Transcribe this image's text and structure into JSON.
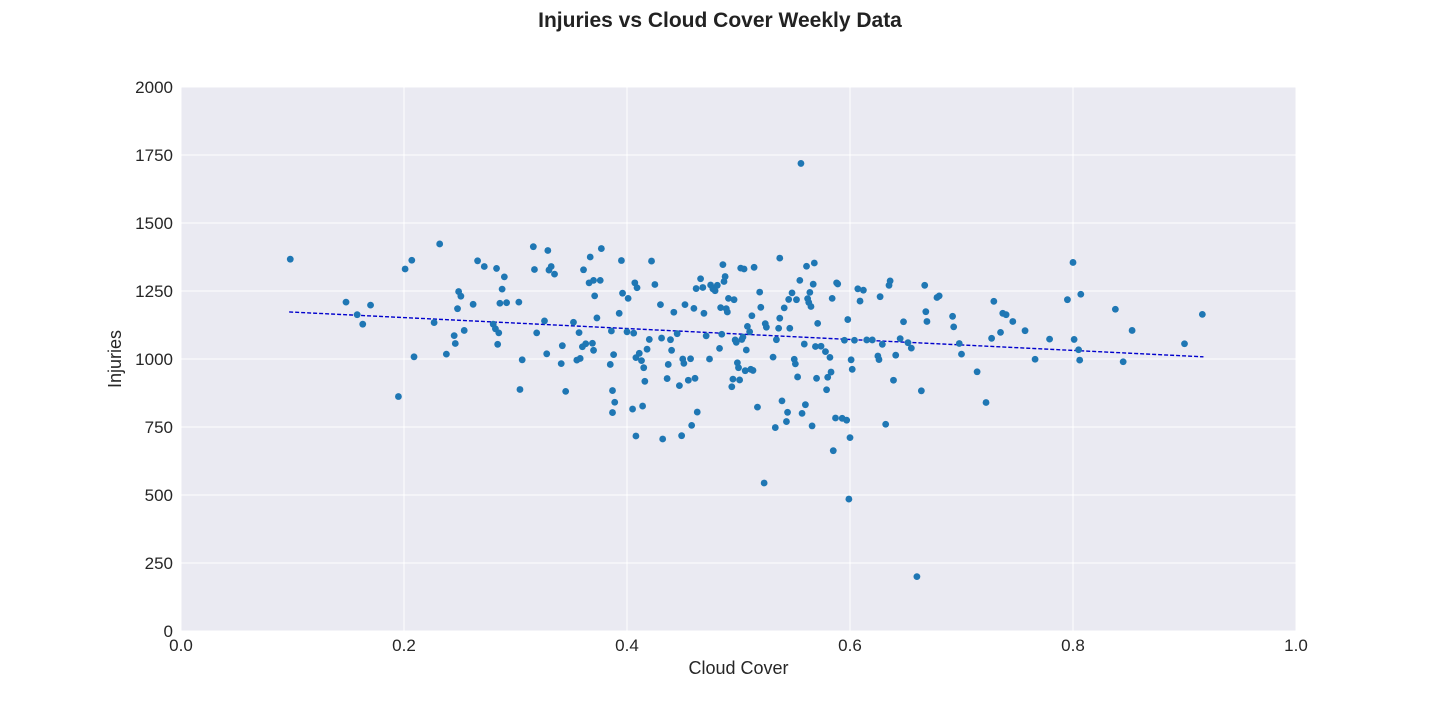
{
  "chart_data": {
    "type": "scatter",
    "title": "Injuries vs Cloud Cover Weekly Data",
    "xlabel": "Cloud Cover",
    "ylabel": "Injuries",
    "xlim": [
      0.0,
      1.0
    ],
    "ylim": [
      0,
      2000
    ],
    "xticks": [
      0.0,
      0.2,
      0.4,
      0.6,
      0.8,
      1.0
    ],
    "xtick_labels": [
      "0.0",
      "0.2",
      "0.4",
      "0.6",
      "0.8",
      "1.0"
    ],
    "yticks": [
      0,
      250,
      500,
      750,
      1000,
      1250,
      1500,
      1750,
      2000
    ],
    "ytick_labels": [
      "0",
      "250",
      "500",
      "750",
      "1000",
      "1250",
      "1500",
      "1750",
      "2000"
    ],
    "grid": true,
    "background_color": "#eaeaf2",
    "point_color": "#1f77b4",
    "trend_color": "#0000cc",
    "trendline": {
      "style": "dashed",
      "x": [
        0.097,
        0.917
      ],
      "y": [
        1173,
        1008
      ]
    },
    "points": [
      [
        0.098,
        1367
      ],
      [
        0.148,
        1209
      ],
      [
        0.158,
        1163
      ],
      [
        0.163,
        1128
      ],
      [
        0.17,
        1198
      ],
      [
        0.195,
        862
      ],
      [
        0.201,
        1331
      ],
      [
        0.207,
        1363
      ],
      [
        0.209,
        1008
      ],
      [
        0.227,
        1134
      ],
      [
        0.232,
        1423
      ],
      [
        0.238,
        1018
      ],
      [
        0.245,
        1086
      ],
      [
        0.246,
        1057
      ],
      [
        0.248,
        1185
      ],
      [
        0.249,
        1248
      ],
      [
        0.251,
        1231
      ],
      [
        0.254,
        1105
      ],
      [
        0.262,
        1201
      ],
      [
        0.266,
        1361
      ],
      [
        0.272,
        1340
      ],
      [
        0.28,
        1128
      ],
      [
        0.282,
        1111
      ],
      [
        0.283,
        1333
      ],
      [
        0.284,
        1054
      ],
      [
        0.285,
        1096
      ],
      [
        0.286,
        1205
      ],
      [
        0.288,
        1257
      ],
      [
        0.29,
        1302
      ],
      [
        0.292,
        1207
      ],
      [
        0.303,
        1209
      ],
      [
        0.304,
        888
      ],
      [
        0.306,
        997
      ],
      [
        0.316,
        1413
      ],
      [
        0.317,
        1329
      ],
      [
        0.319,
        1096
      ],
      [
        0.326,
        1140
      ],
      [
        0.328,
        1019
      ],
      [
        0.329,
        1399
      ],
      [
        0.33,
        1327
      ],
      [
        0.332,
        1340
      ],
      [
        0.335,
        1312
      ],
      [
        0.341,
        983
      ],
      [
        0.342,
        1049
      ],
      [
        0.345,
        881
      ],
      [
        0.352,
        1135
      ],
      [
        0.355,
        996
      ],
      [
        0.357,
        1097
      ],
      [
        0.358,
        1002
      ],
      [
        0.36,
        1045
      ],
      [
        0.361,
        1328
      ],
      [
        0.363,
        1056
      ],
      [
        0.366,
        1280
      ],
      [
        0.367,
        1375
      ],
      [
        0.369,
        1058
      ],
      [
        0.37,
        1032
      ],
      [
        0.37,
        1289
      ],
      [
        0.371,
        1232
      ],
      [
        0.373,
        1151
      ],
      [
        0.376,
        1289
      ],
      [
        0.377,
        1406
      ],
      [
        0.385,
        980
      ],
      [
        0.386,
        1103
      ],
      [
        0.387,
        884
      ],
      [
        0.387,
        803
      ],
      [
        0.388,
        1016
      ],
      [
        0.389,
        841
      ],
      [
        0.393,
        1168
      ],
      [
        0.395,
        1362
      ],
      [
        0.396,
        1242
      ],
      [
        0.4,
        1100
      ],
      [
        0.401,
        1223
      ],
      [
        0.405,
        816
      ],
      [
        0.406,
        1095
      ],
      [
        0.407,
        1280
      ],
      [
        0.408,
        717
      ],
      [
        0.408,
        1005
      ],
      [
        0.409,
        1262
      ],
      [
        0.411,
        1021
      ],
      [
        0.413,
        994
      ],
      [
        0.414,
        827
      ],
      [
        0.415,
        968
      ],
      [
        0.416,
        918
      ],
      [
        0.418,
        1036
      ],
      [
        0.42,
        1072
      ],
      [
        0.422,
        1360
      ],
      [
        0.425,
        1274
      ],
      [
        0.43,
        1200
      ],
      [
        0.431,
        1077
      ],
      [
        0.432,
        706
      ],
      [
        0.436,
        928
      ],
      [
        0.437,
        980
      ],
      [
        0.439,
        1071
      ],
      [
        0.44,
        1032
      ],
      [
        0.442,
        1172
      ],
      [
        0.445,
        1093
      ],
      [
        0.447,
        902
      ],
      [
        0.449,
        718
      ],
      [
        0.45,
        1000
      ],
      [
        0.451,
        984
      ],
      [
        0.452,
        1200
      ],
      [
        0.455,
        922
      ],
      [
        0.457,
        1001
      ],
      [
        0.458,
        756
      ],
      [
        0.46,
        1186
      ],
      [
        0.461,
        929
      ],
      [
        0.462,
        1259
      ],
      [
        0.463,
        805
      ],
      [
        0.466,
        1295
      ],
      [
        0.468,
        1263
      ],
      [
        0.469,
        1168
      ],
      [
        0.471,
        1085
      ],
      [
        0.474,
        1000
      ],
      [
        0.475,
        1272
      ],
      [
        0.477,
        1258
      ],
      [
        0.479,
        1251
      ],
      [
        0.481,
        1271
      ],
      [
        0.483,
        1039
      ],
      [
        0.484,
        1189
      ],
      [
        0.485,
        1091
      ],
      [
        0.486,
        1347
      ],
      [
        0.487,
        1285
      ],
      [
        0.488,
        1303
      ],
      [
        0.489,
        1185
      ],
      [
        0.49,
        1173
      ],
      [
        0.491,
        1223
      ],
      [
        0.494,
        898
      ],
      [
        0.495,
        926
      ],
      [
        0.496,
        1218
      ],
      [
        0.497,
        1070
      ],
      [
        0.498,
        1061
      ],
      [
        0.499,
        986
      ],
      [
        0.5,
        968
      ],
      [
        0.501,
        923
      ],
      [
        0.502,
        1334
      ],
      [
        0.503,
        1072
      ],
      [
        0.504,
        1081
      ],
      [
        0.505,
        1331
      ],
      [
        0.506,
        957
      ],
      [
        0.507,
        1033
      ],
      [
        0.508,
        1120
      ],
      [
        0.51,
        1100
      ],
      [
        0.511,
        962
      ],
      [
        0.512,
        1159
      ],
      [
        0.513,
        958
      ],
      [
        0.514,
        1337
      ],
      [
        0.517,
        823
      ],
      [
        0.519,
        1246
      ],
      [
        0.52,
        1190
      ],
      [
        0.523,
        544
      ],
      [
        0.524,
        1130
      ],
      [
        0.525,
        1117
      ],
      [
        0.531,
        1007
      ],
      [
        0.533,
        748
      ],
      [
        0.534,
        1071
      ],
      [
        0.536,
        1113
      ],
      [
        0.537,
        1150
      ],
      [
        0.537,
        1371
      ],
      [
        0.539,
        846
      ],
      [
        0.541,
        1188
      ],
      [
        0.543,
        770
      ],
      [
        0.544,
        804
      ],
      [
        0.545,
        1219
      ],
      [
        0.546,
        1113
      ],
      [
        0.548,
        1243
      ],
      [
        0.55,
        999
      ],
      [
        0.551,
        982
      ],
      [
        0.552,
        1218
      ],
      [
        0.553,
        934
      ],
      [
        0.555,
        1289
      ],
      [
        0.556,
        1719
      ],
      [
        0.557,
        800
      ],
      [
        0.559,
        1055
      ],
      [
        0.56,
        832
      ],
      [
        0.561,
        1341
      ],
      [
        0.562,
        1222
      ],
      [
        0.563,
        1208
      ],
      [
        0.564,
        1245
      ],
      [
        0.565,
        1193
      ],
      [
        0.566,
        754
      ],
      [
        0.567,
        1275
      ],
      [
        0.568,
        1353
      ],
      [
        0.569,
        1046
      ],
      [
        0.57,
        929
      ],
      [
        0.571,
        1131
      ],
      [
        0.574,
        1047
      ],
      [
        0.578,
        1027
      ],
      [
        0.579,
        887
      ],
      [
        0.58,
        933
      ],
      [
        0.582,
        1006
      ],
      [
        0.583,
        952
      ],
      [
        0.584,
        1223
      ],
      [
        0.585,
        663
      ],
      [
        0.587,
        783
      ],
      [
        0.588,
        1280
      ],
      [
        0.589,
        1276
      ],
      [
        0.593,
        782
      ],
      [
        0.595,
        1069
      ],
      [
        0.597,
        775
      ],
      [
        0.598,
        1145
      ],
      [
        0.599,
        485
      ],
      [
        0.6,
        711
      ],
      [
        0.601,
        997
      ],
      [
        0.602,
        962
      ],
      [
        0.604,
        1069
      ],
      [
        0.607,
        1258
      ],
      [
        0.609,
        1213
      ],
      [
        0.612,
        1253
      ],
      [
        0.615,
        1070
      ],
      [
        0.62,
        1070
      ],
      [
        0.625,
        1011
      ],
      [
        0.626,
        998
      ],
      [
        0.627,
        1229
      ],
      [
        0.629,
        1054
      ],
      [
        0.632,
        760
      ],
      [
        0.635,
        1271
      ],
      [
        0.636,
        1287
      ],
      [
        0.639,
        922
      ],
      [
        0.641,
        1014
      ],
      [
        0.645,
        1075
      ],
      [
        0.648,
        1137
      ],
      [
        0.652,
        1060
      ],
      [
        0.655,
        1040
      ],
      [
        0.66,
        200
      ],
      [
        0.664,
        883
      ],
      [
        0.667,
        1271
      ],
      [
        0.668,
        1174
      ],
      [
        0.669,
        1138
      ],
      [
        0.678,
        1226
      ],
      [
        0.68,
        1232
      ],
      [
        0.692,
        1157
      ],
      [
        0.693,
        1118
      ],
      [
        0.698,
        1057
      ],
      [
        0.7,
        1018
      ],
      [
        0.714,
        953
      ],
      [
        0.722,
        840
      ],
      [
        0.727,
        1076
      ],
      [
        0.729,
        1212
      ],
      [
        0.735,
        1098
      ],
      [
        0.737,
        1168
      ],
      [
        0.74,
        1163
      ],
      [
        0.746,
        1138
      ],
      [
        0.757,
        1104
      ],
      [
        0.766,
        999
      ],
      [
        0.779,
        1073
      ],
      [
        0.795,
        1218
      ],
      [
        0.8,
        1355
      ],
      [
        0.801,
        1072
      ],
      [
        0.805,
        1034
      ],
      [
        0.806,
        996
      ],
      [
        0.807,
        1238
      ],
      [
        0.838,
        1183
      ],
      [
        0.845,
        990
      ],
      [
        0.853,
        1105
      ],
      [
        0.9,
        1056
      ],
      [
        0.916,
        1164
      ]
    ]
  }
}
